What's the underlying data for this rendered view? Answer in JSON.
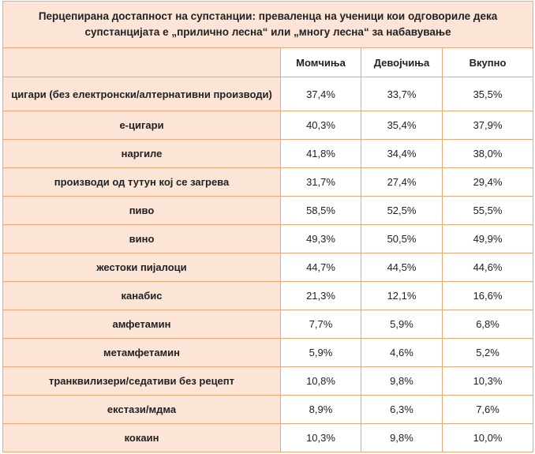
{
  "table": {
    "title": "Перцепирана достапност на супстанции: преваленца на ученици кои одговориле дека супстанцијата е „прилично лесна“ или „многу лесна“ за набавување",
    "header": [
      "",
      "Момчиња",
      "Девојчиња",
      "Вкупно"
    ],
    "rows": [
      [
        "цигари (без електронски/алтернативни производи)",
        "37,4%",
        "33,7%",
        "35,5%"
      ],
      [
        "е-цигари",
        "40,3%",
        "35,4%",
        "37,9%"
      ],
      [
        "наргиле",
        "41,8%",
        "34,4%",
        "38,0%"
      ],
      [
        "производи од тутун кој се загрева",
        "31,7%",
        "27,4%",
        "29,4%"
      ],
      [
        "пиво",
        "58,5%",
        "52,5%",
        "55,5%"
      ],
      [
        "вино",
        "49,3%",
        "50,5%",
        "49,9%"
      ],
      [
        "жестоки пијалоци",
        "44,7%",
        "44,5%",
        "44,6%"
      ],
      [
        "канабис",
        "21,3%",
        "12,1%",
        "16,6%"
      ],
      [
        "амфетамин",
        "7,7%",
        "5,9%",
        "6,8%"
      ],
      [
        "метамфетамин",
        "5,9%",
        "4,6%",
        "5,2%"
      ],
      [
        "транквилизери/седативи без рецепт",
        "10,8%",
        "9,8%",
        "10,3%"
      ],
      [
        "екстази/мдма",
        "8,9%",
        "6,3%",
        "7,6%"
      ],
      [
        "кокаин",
        "10,3%",
        "9,8%",
        "10,0%"
      ]
    ]
  }
}
